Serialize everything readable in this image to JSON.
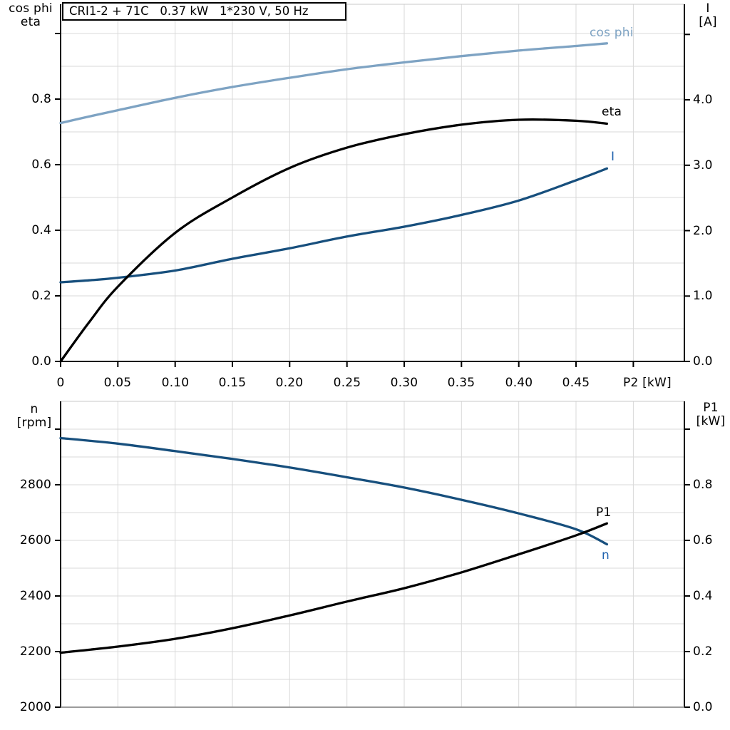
{
  "colors": {
    "light_blue": "#7ea3c3",
    "dark_blue": "#174f7d",
    "label_blue": "#1f62ae",
    "black": "#000000",
    "grid": "#d9d9d9",
    "gray_spine": "#9b9b9b"
  },
  "chart_data": [
    {
      "type": "line",
      "title_box": "CRI1-2 + 71C   0.37 kW   1*230 V, 50 Hz",
      "x_axis": {
        "label": "P2 [kW]",
        "unit": "kW",
        "range": [
          0,
          0.545
        ],
        "tick_values": [
          0,
          0.05,
          0.1,
          0.15,
          0.2,
          0.25,
          0.3,
          0.35,
          0.4,
          0.45
        ],
        "tick_labels": [
          "0",
          "0.05",
          "0.10",
          "0.15",
          "0.20",
          "0.25",
          "0.30",
          "0.35",
          "0.40",
          "0.45"
        ]
      },
      "y_left": {
        "label_lines": [
          "cos phi",
          "eta"
        ],
        "range": [
          0,
          1.085
        ],
        "tick_values": [
          0,
          0.2,
          0.4,
          0.6,
          0.8
        ],
        "tick_labels": [
          "0.0",
          "0.2",
          "0.4",
          "0.6",
          "0.8"
        ]
      },
      "y_right": {
        "label_lines": [
          "I",
          "[A]"
        ],
        "unit": "A",
        "range": [
          0,
          5.44
        ],
        "tick_values": [
          0,
          1,
          2,
          3,
          4
        ],
        "tick_labels": [
          "0.0",
          "1.0",
          "2.0",
          "3.0",
          "4.0"
        ]
      },
      "series": [
        {
          "name": "cos phi",
          "axis": "left",
          "color_key": "light_blue",
          "label_color_key": "light_blue",
          "x": [
            0,
            0.025,
            0.05,
            0.1,
            0.15,
            0.2,
            0.25,
            0.3,
            0.35,
            0.4,
            0.45,
            0.477
          ],
          "y": [
            0.727,
            0.747,
            0.766,
            0.804,
            0.837,
            0.865,
            0.891,
            0.912,
            0.931,
            0.948,
            0.962,
            0.97
          ]
        },
        {
          "name": "I",
          "axis": "right",
          "color_key": "dark_blue",
          "label_color_key": "label_blue",
          "x": [
            0,
            0.025,
            0.05,
            0.1,
            0.15,
            0.2,
            0.25,
            0.3,
            0.35,
            0.4,
            0.45,
            0.477
          ],
          "y": [
            1.21,
            1.24,
            1.28,
            1.39,
            1.57,
            1.73,
            1.91,
            2.06,
            2.24,
            2.46,
            2.77,
            2.95
          ]
        },
        {
          "name": "eta",
          "axis": "left",
          "color_key": "black",
          "label_color_key": "black",
          "x": [
            0,
            0.025,
            0.05,
            0.1,
            0.15,
            0.2,
            0.25,
            0.3,
            0.35,
            0.4,
            0.45,
            0.477
          ],
          "y": [
            0,
            0.12,
            0.228,
            0.392,
            0.5,
            0.59,
            0.652,
            0.693,
            0.722,
            0.737,
            0.734,
            0.725
          ]
        }
      ]
    },
    {
      "type": "line",
      "x_axis": {
        "label": "",
        "unit": "kW",
        "range": [
          0,
          0.545
        ],
        "tick_values": [],
        "tick_labels": []
      },
      "y_left": {
        "label_lines": [
          "n",
          "[rpm]"
        ],
        "unit": "rpm",
        "range": [
          2000,
          3100
        ],
        "tick_values": [
          2000,
          2200,
          2400,
          2600,
          2800
        ],
        "tick_labels": [
          "2000",
          "2200",
          "2400",
          "2600",
          "2800"
        ]
      },
      "y_right": {
        "label_lines": [
          "P1",
          "[kW]"
        ],
        "unit": "kW",
        "range": [
          0,
          1.1
        ],
        "tick_values": [
          0,
          0.2,
          0.4,
          0.6,
          0.8
        ],
        "tick_labels": [
          "0.0",
          "0.2",
          "0.4",
          "0.6",
          "0.8"
        ]
      },
      "series": [
        {
          "name": "n",
          "axis": "left",
          "color_key": "dark_blue",
          "label_color_key": "label_blue",
          "x": [
            0,
            0.05,
            0.1,
            0.15,
            0.2,
            0.25,
            0.3,
            0.35,
            0.4,
            0.45,
            0.477
          ],
          "y": [
            2968,
            2948,
            2921,
            2893,
            2862,
            2827,
            2790,
            2746,
            2697,
            2640,
            2586
          ]
        },
        {
          "name": "P1",
          "axis": "right",
          "color_key": "black",
          "label_color_key": "black",
          "x": [
            0,
            0.05,
            0.1,
            0.15,
            0.2,
            0.25,
            0.3,
            0.35,
            0.4,
            0.45,
            0.477
          ],
          "y": [
            0.196,
            0.218,
            0.246,
            0.284,
            0.33,
            0.38,
            0.428,
            0.485,
            0.55,
            0.618,
            0.661
          ]
        }
      ]
    }
  ]
}
